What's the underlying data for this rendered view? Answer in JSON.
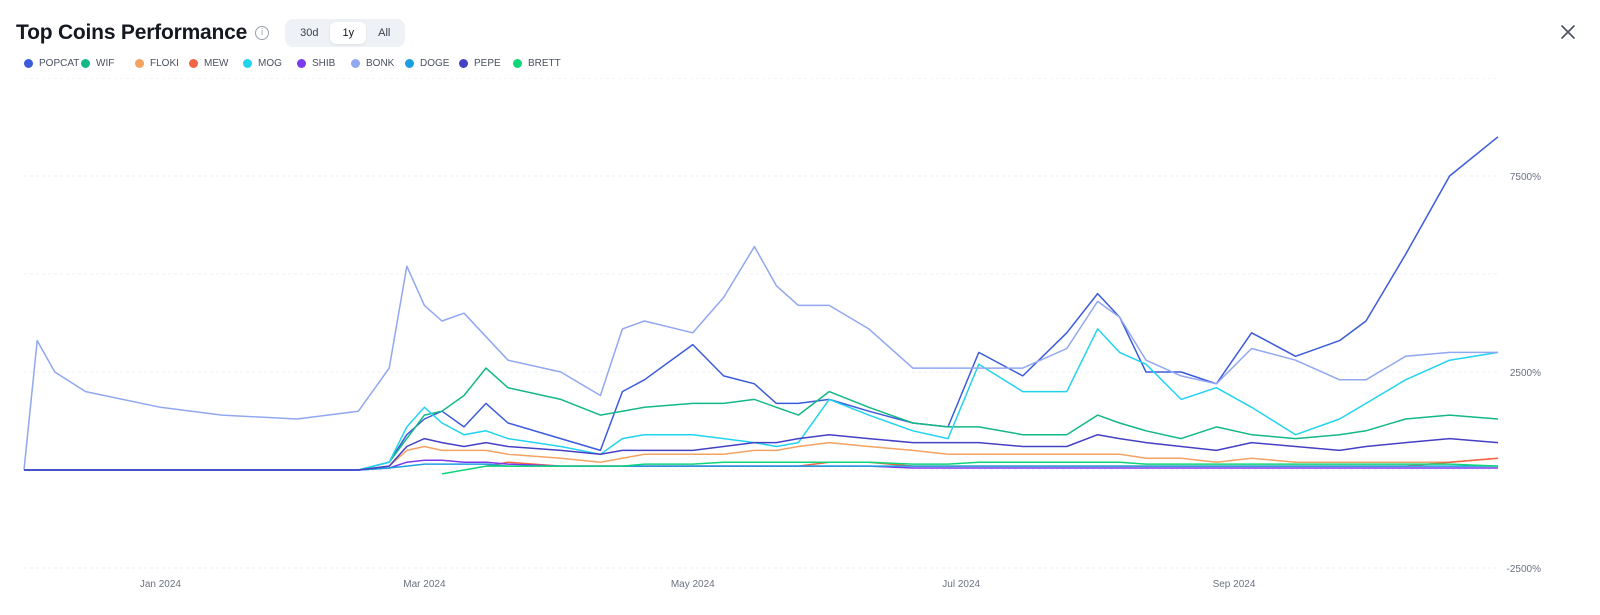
{
  "header": {
    "title": "Top Coins Performance",
    "ranges": [
      "30d",
      "1y",
      "All"
    ],
    "active_range": "1y"
  },
  "chart_data": {
    "type": "line",
    "title": "Top Coins Performance",
    "unit": "%",
    "y_ticks": [
      "7500%",
      "2500%",
      "-2500%"
    ],
    "ylim": [
      -2500,
      10000
    ],
    "x_ticks": [
      "Jan 2024",
      "Mar 2024",
      "May 2024",
      "Jul 2024",
      "Sep 2024"
    ],
    "x_range": [
      "2023-12-01",
      "2024-10-31"
    ],
    "grid": true,
    "legend": "top-left",
    "x": [
      "2023-12-01",
      "2023-12-04",
      "2023-12-08",
      "2023-12-15",
      "2024-01-01",
      "2024-01-15",
      "2024-02-01",
      "2024-02-15",
      "2024-02-22",
      "2024-02-26",
      "2024-03-01",
      "2024-03-05",
      "2024-03-10",
      "2024-03-15",
      "2024-03-20",
      "2024-04-01",
      "2024-04-10",
      "2024-04-15",
      "2024-04-20",
      "2024-05-01",
      "2024-05-08",
      "2024-05-15",
      "2024-05-20",
      "2024-05-25",
      "2024-06-01",
      "2024-06-10",
      "2024-06-20",
      "2024-06-28",
      "2024-07-05",
      "2024-07-15",
      "2024-07-25",
      "2024-08-01",
      "2024-08-06",
      "2024-08-12",
      "2024-08-20",
      "2024-08-28",
      "2024-09-05",
      "2024-09-15",
      "2024-09-25",
      "2024-10-01",
      "2024-10-10",
      "2024-10-20",
      "2024-10-31"
    ],
    "series": [
      {
        "name": "POPCAT",
        "color": "#3b5bdb",
        "values": [
          0,
          0,
          0,
          0,
          0,
          0,
          0,
          0,
          200,
          900,
          1300,
          1500,
          1100,
          1700,
          1200,
          800,
          500,
          2000,
          2300,
          3200,
          2400,
          2200,
          1700,
          1700,
          1800,
          1500,
          1200,
          1100,
          3000,
          2400,
          3500,
          4500,
          3900,
          2500,
          2500,
          2200,
          3500,
          2900,
          3300,
          3800,
          5500,
          7500,
          8500
        ]
      },
      {
        "name": "WIF",
        "color": "#12b886",
        "values": [
          0,
          0,
          0,
          0,
          0,
          0,
          0,
          0,
          200,
          800,
          1400,
          1500,
          1900,
          2600,
          2100,
          1800,
          1400,
          1500,
          1600,
          1700,
          1700,
          1800,
          1600,
          1400,
          2000,
          1600,
          1200,
          1100,
          1100,
          900,
          900,
          1400,
          1200,
          1000,
          800,
          1100,
          900,
          800,
          900,
          1000,
          1300,
          1400,
          1300
        ]
      },
      {
        "name": "FLOKI",
        "color": "#f4a261",
        "values": [
          0,
          0,
          0,
          0,
          0,
          0,
          0,
          0,
          100,
          500,
          600,
          500,
          500,
          500,
          400,
          300,
          200,
          300,
          400,
          400,
          400,
          500,
          500,
          600,
          700,
          600,
          500,
          400,
          400,
          400,
          400,
          400,
          400,
          300,
          300,
          200,
          300,
          200,
          200,
          200,
          200,
          200,
          300
        ]
      },
      {
        "name": "MEW",
        "color": "#f06543",
        "values": [
          null,
          null,
          null,
          null,
          null,
          null,
          null,
          null,
          null,
          null,
          null,
          null,
          null,
          100,
          200,
          100,
          100,
          100,
          100,
          100,
          100,
          100,
          100,
          100,
          200,
          200,
          100,
          100,
          100,
          100,
          100,
          100,
          100,
          100,
          100,
          100,
          100,
          100,
          100,
          100,
          100,
          200,
          300
        ]
      },
      {
        "name": "MOG",
        "color": "#22d3ee",
        "values": [
          0,
          0,
          0,
          0,
          0,
          0,
          0,
          0,
          200,
          1100,
          1600,
          1200,
          900,
          1000,
          800,
          600,
          400,
          800,
          900,
          900,
          800,
          700,
          600,
          700,
          1800,
          1400,
          1000,
          800,
          2700,
          2000,
          2000,
          3600,
          3000,
          2700,
          1800,
          2100,
          1600,
          900,
          1300,
          1700,
          2300,
          2800,
          3000
        ]
      },
      {
        "name": "SHIB",
        "color": "#7c3aed",
        "values": [
          0,
          0,
          0,
          0,
          0,
          0,
          0,
          0,
          50,
          200,
          250,
          250,
          200,
          200,
          150,
          100,
          100,
          100,
          100,
          100,
          100,
          100,
          100,
          100,
          100,
          100,
          50,
          50,
          50,
          50,
          50,
          50,
          50,
          50,
          50,
          50,
          50,
          50,
          50,
          50,
          50,
          50,
          50
        ]
      },
      {
        "name": "BONK",
        "color": "#91a7f0",
        "values": [
          0,
          3300,
          2500,
          2000,
          1600,
          1400,
          1300,
          1500,
          2600,
          5200,
          4200,
          3800,
          4000,
          3400,
          2800,
          2500,
          1900,
          3600,
          3800,
          3500,
          4400,
          5700,
          4700,
          4200,
          4200,
          3600,
          2600,
          2600,
          2600,
          2600,
          3100,
          4300,
          3900,
          2800,
          2400,
          2200,
          3100,
          2800,
          2300,
          2300,
          2900,
          3000,
          3000
        ]
      },
      {
        "name": "DOGE",
        "color": "#1c9fe0",
        "values": [
          0,
          0,
          0,
          0,
          0,
          0,
          0,
          0,
          50,
          100,
          150,
          150,
          150,
          150,
          100,
          100,
          100,
          100,
          100,
          100,
          100,
          100,
          100,
          100,
          100,
          100,
          100,
          100,
          100,
          100,
          100,
          100,
          100,
          100,
          100,
          100,
          100,
          100,
          100,
          100,
          100,
          100,
          100
        ]
      },
      {
        "name": "PEPE",
        "color": "#4540c4",
        "values": [
          0,
          0,
          0,
          0,
          0,
          0,
          0,
          0,
          100,
          600,
          800,
          700,
          600,
          700,
          600,
          500,
          400,
          500,
          500,
          500,
          600,
          700,
          700,
          800,
          900,
          800,
          700,
          700,
          700,
          600,
          600,
          900,
          800,
          700,
          600,
          500,
          700,
          600,
          500,
          600,
          700,
          800,
          700
        ]
      },
      {
        "name": "BRETT",
        "color": "#10d67a",
        "values": [
          null,
          null,
          null,
          null,
          null,
          null,
          null,
          null,
          null,
          null,
          null,
          -100,
          0,
          100,
          100,
          100,
          100,
          100,
          150,
          150,
          200,
          200,
          200,
          200,
          200,
          200,
          150,
          150,
          200,
          200,
          200,
          200,
          200,
          150,
          150,
          150,
          150,
          150,
          150,
          150,
          150,
          150,
          100
        ]
      }
    ]
  }
}
